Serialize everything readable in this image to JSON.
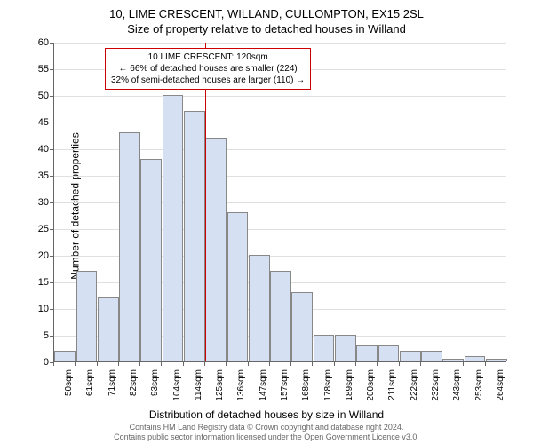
{
  "chart": {
    "type": "histogram",
    "title_main": "10, LIME CRESCENT, WILLAND, CULLOMPTON, EX15 2SL",
    "title_sub": "Size of property relative to detached houses in Willand",
    "y_label": "Number of detached properties",
    "x_label": "Distribution of detached houses by size in Willand",
    "ylim": [
      0,
      60
    ],
    "ytick_step": 5,
    "y_ticks": [
      0,
      5,
      10,
      15,
      20,
      25,
      30,
      35,
      40,
      45,
      50,
      55,
      60
    ],
    "x_ticks": [
      "50sqm",
      "61sqm",
      "71sqm",
      "82sqm",
      "93sqm",
      "104sqm",
      "114sqm",
      "125sqm",
      "136sqm",
      "147sqm",
      "157sqm",
      "168sqm",
      "178sqm",
      "189sqm",
      "200sqm",
      "211sqm",
      "222sqm",
      "232sqm",
      "243sqm",
      "253sqm",
      "264sqm"
    ],
    "bars": [
      {
        "value": 2
      },
      {
        "value": 17
      },
      {
        "value": 12
      },
      {
        "value": 43
      },
      {
        "value": 38
      },
      {
        "value": 50
      },
      {
        "value": 47
      },
      {
        "value": 42
      },
      {
        "value": 28
      },
      {
        "value": 20
      },
      {
        "value": 17
      },
      {
        "value": 13
      },
      {
        "value": 5
      },
      {
        "value": 5
      },
      {
        "value": 3
      },
      {
        "value": 3
      },
      {
        "value": 2
      },
      {
        "value": 2
      },
      {
        "value": 0.5
      },
      {
        "value": 1
      },
      {
        "value": 0.5
      }
    ],
    "bar_fill": "#d5e1f2",
    "bar_border": "#888888",
    "grid_color": "#e0e0e0",
    "background_color": "#ffffff",
    "ref_line_x_index": 7,
    "ref_line_color": "#cc0000",
    "annotation": {
      "line1": "10 LIME CRESCENT: 120sqm",
      "line2": "← 66% of detached houses are smaller (224)",
      "line3": "32% of semi-detached houses are larger (110) →",
      "border_color": "#cc0000"
    },
    "footer_line1": "Contains HM Land Registry data © Crown copyright and database right 2024.",
    "footer_line2": "Contains public sector information licensed under the Open Government Licence v3.0."
  }
}
